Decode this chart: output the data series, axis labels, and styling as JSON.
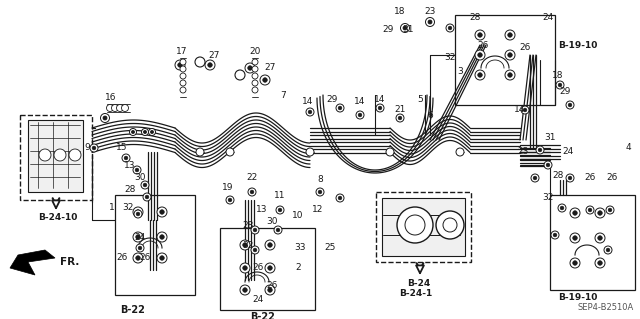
{
  "bg_color": "#ffffff",
  "line_color": "#1a1a1a",
  "part_code": "SEP4-B2510A",
  "labels": {
    "ref_b22_left": "B-22",
    "ref_b22_bottom": "B-22",
    "ref_b24": "B-24",
    "ref_b241": "B-24-1",
    "ref_b2410": "B-24-10",
    "ref_b1910_top": "B-19-10",
    "ref_b1910_bot": "B-19-10",
    "fr_label": "FR."
  },
  "figsize": [
    6.4,
    3.19
  ],
  "dpi": 100
}
